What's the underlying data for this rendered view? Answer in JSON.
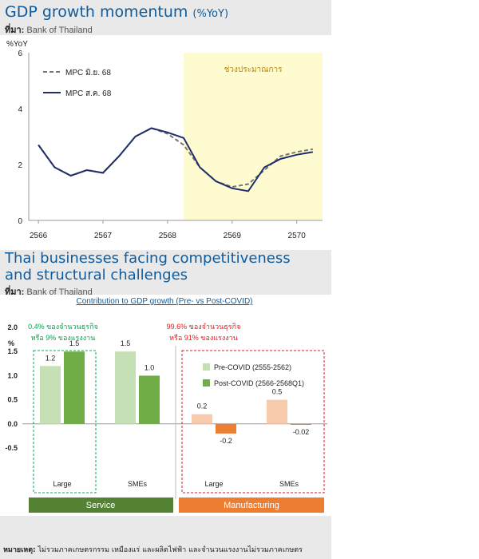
{
  "panel1": {
    "title_main": "GDP growth momentum",
    "title_unit": "(%YoY)",
    "source_label": "ที่มา:",
    "source_text": "Bank of Thailand"
  },
  "panel2": {
    "title_line1": "Thai businesses facing competitiveness",
    "title_line2": "and structural challenges",
    "source_label": "ที่มา:",
    "source_text": "Bank of Thailand"
  },
  "footnote": {
    "label": "หมายเหตุ:",
    "text": "ไม่รวมภาคเกษตรกรรม เหมืองแร่ และผลิตไฟฟ้า และจำนวนแรงงานไม่รวมภาคเกษตร"
  },
  "colors": {
    "title_blue": "#0f5b9c",
    "forecast_fill": "#fffbd0",
    "mpc_jun": "#777777",
    "mpc_aug": "#1f2d6b",
    "pre_service": "#c5e0b4",
    "post_service": "#70ad47",
    "pre_manu": "#f8cbad",
    "post_manu": "#ed7d31",
    "service_box": "#00b050",
    "manu_box": "#e31a1c",
    "service_bar": "#548235",
    "manu_bar": "#ed7d31"
  },
  "chart_data": [
    {
      "type": "line",
      "ylabel": "%YoY",
      "ylim": [
        0,
        6
      ],
      "yticks": [
        0,
        2,
        4,
        6
      ],
      "xticks": [
        "2566",
        "2567",
        "2568",
        "2569",
        "2570"
      ],
      "forecast_label": "ช่วงประมาณการ",
      "forecast_start": 2568.25,
      "legend_position": "top-left",
      "series": [
        {
          "name": "MPC มิ.ย. 68",
          "style": "dashed",
          "points": [
            [
              2566.0,
              2.7
            ],
            [
              2566.25,
              1.9
            ],
            [
              2566.5,
              1.6
            ],
            [
              2566.75,
              1.8
            ],
            [
              2567.0,
              1.7
            ],
            [
              2567.25,
              2.3
            ],
            [
              2567.5,
              3.0
            ],
            [
              2567.75,
              3.3
            ],
            [
              2568.0,
              3.1
            ],
            [
              2568.25,
              2.7
            ],
            [
              2568.5,
              1.9
            ],
            [
              2568.75,
              1.4
            ],
            [
              2569.0,
              1.2
            ],
            [
              2569.25,
              1.3
            ],
            [
              2569.5,
              1.8
            ],
            [
              2569.75,
              2.3
            ],
            [
              2570.0,
              2.45
            ],
            [
              2570.25,
              2.55
            ]
          ]
        },
        {
          "name": "MPC ส.ค. 68",
          "style": "solid",
          "points": [
            [
              2566.0,
              2.7
            ],
            [
              2566.25,
              1.9
            ],
            [
              2566.5,
              1.6
            ],
            [
              2566.75,
              1.8
            ],
            [
              2567.0,
              1.7
            ],
            [
              2567.25,
              2.3
            ],
            [
              2567.5,
              3.0
            ],
            [
              2567.75,
              3.3
            ],
            [
              2568.0,
              3.15
            ],
            [
              2568.25,
              2.95
            ],
            [
              2568.5,
              1.9
            ],
            [
              2568.75,
              1.4
            ],
            [
              2569.0,
              1.15
            ],
            [
              2569.25,
              1.05
            ],
            [
              2569.5,
              1.9
            ],
            [
              2569.75,
              2.2
            ],
            [
              2570.0,
              2.35
            ],
            [
              2570.25,
              2.45
            ]
          ]
        }
      ]
    },
    {
      "type": "bar",
      "title": "Contribution to GDP growth (Pre- vs Post-COVID)",
      "ylabel": "%",
      "ylim": [
        -0.5,
        2.0
      ],
      "yticks": [
        "-0.5",
        "0.0",
        "0.5",
        "1.0",
        "1.5",
        "2.0"
      ],
      "categories": [
        "Large",
        "SMEs",
        "Large",
        "SMEs"
      ],
      "sectors": [
        "Service",
        "Service",
        "Manufacturing",
        "Manufacturing"
      ],
      "series": [
        {
          "name": "Pre-COVID (2555-2562)",
          "values": [
            1.2,
            1.5,
            0.2,
            0.5
          ],
          "labels": [
            "1.2",
            "1.5",
            "0.2",
            "0.5"
          ]
        },
        {
          "name": "Post-COVID (2566-2568Q1)",
          "values": [
            1.5,
            1.0,
            -0.2,
            -0.02
          ],
          "labels": [
            "1.5",
            "1.0",
            "-0.2",
            "-0.02"
          ]
        }
      ],
      "group_labels": [
        "Service",
        "Manufacturing"
      ],
      "service_note": [
        "0.4% ของจำนวนธุรกิจ",
        "หรือ 9% ของแรงงาน"
      ],
      "manufacturing_note": [
        "99.6% ของจำนวนธุรกิจ",
        "หรือ 91% ของแรงงาน"
      ],
      "legend_position": "top-right"
    }
  ]
}
